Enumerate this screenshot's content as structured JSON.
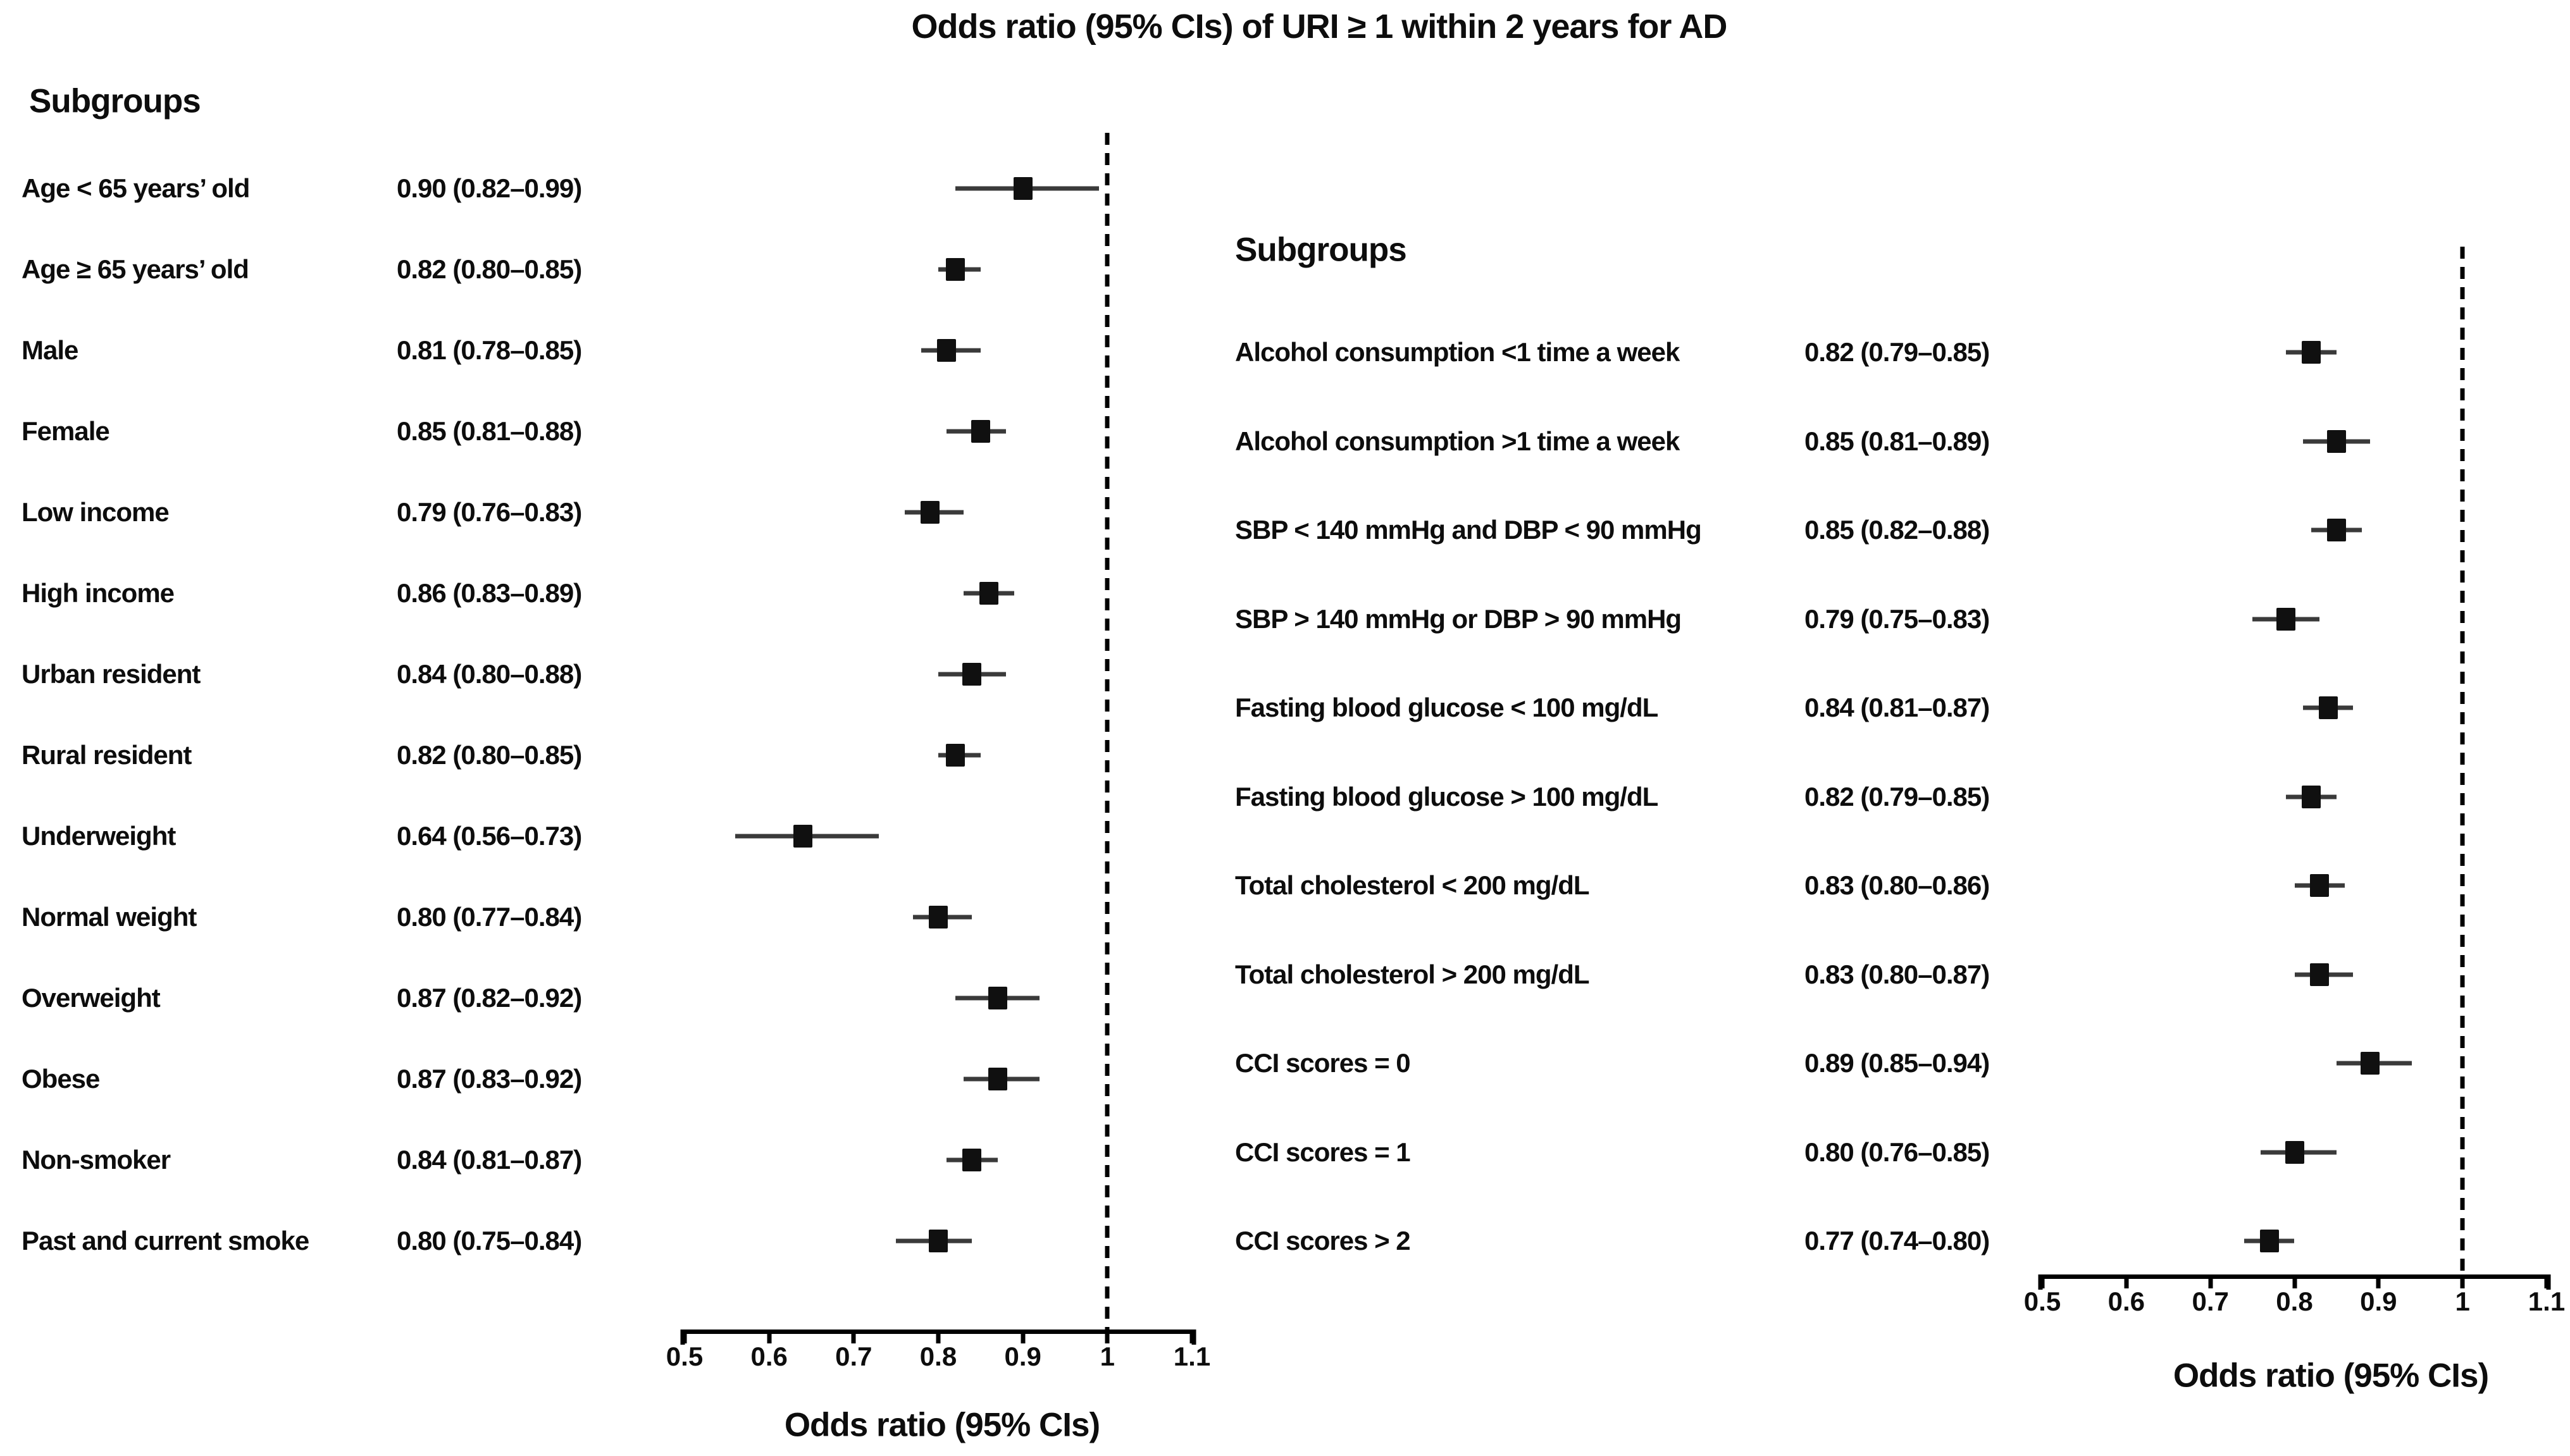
{
  "title": "Odds ratio (95% CIs) of URI ≥ 1 within 2 years for AD",
  "chart_data": [
    {
      "type": "forest",
      "panel": "left",
      "header": "Subgroups",
      "xlabel": "Odds ratio (95% CIs)",
      "xlim": [
        0.5,
        1.1
      ],
      "xticks": [
        "0.5",
        "0.6",
        "0.7",
        "0.8",
        "0.9",
        "1",
        "1.1"
      ],
      "reference_line": 1,
      "grid": false,
      "rows": [
        {
          "label": "Age < 65 years’ old",
          "or": 0.9,
          "lo": 0.82,
          "hi": 0.99,
          "display": "0.90 (0.82–0.99)"
        },
        {
          "label": "Age ≥ 65 years’ old",
          "or": 0.82,
          "lo": 0.8,
          "hi": 0.85,
          "display": "0.82 (0.80–0.85)"
        },
        {
          "label": "Male",
          "or": 0.81,
          "lo": 0.78,
          "hi": 0.85,
          "display": "0.81 (0.78–0.85)"
        },
        {
          "label": "Female",
          "or": 0.85,
          "lo": 0.81,
          "hi": 0.88,
          "display": "0.85 (0.81–0.88)"
        },
        {
          "label": "Low income",
          "or": 0.79,
          "lo": 0.76,
          "hi": 0.83,
          "display": "0.79 (0.76–0.83)"
        },
        {
          "label": "High income",
          "or": 0.86,
          "lo": 0.83,
          "hi": 0.89,
          "display": "0.86 (0.83–0.89)"
        },
        {
          "label": "Urban resident",
          "or": 0.84,
          "lo": 0.8,
          "hi": 0.88,
          "display": "0.84 (0.80–0.88)"
        },
        {
          "label": "Rural resident",
          "or": 0.82,
          "lo": 0.8,
          "hi": 0.85,
          "display": "0.82 (0.80–0.85)"
        },
        {
          "label": "Underweight",
          "or": 0.64,
          "lo": 0.56,
          "hi": 0.73,
          "display": "0.64 (0.56–0.73)"
        },
        {
          "label": "Normal weight",
          "or": 0.8,
          "lo": 0.77,
          "hi": 0.84,
          "display": "0.80 (0.77–0.84)"
        },
        {
          "label": "Overweight",
          "or": 0.87,
          "lo": 0.82,
          "hi": 0.92,
          "display": "0.87 (0.82–0.92)"
        },
        {
          "label": "Obese",
          "or": 0.87,
          "lo": 0.83,
          "hi": 0.92,
          "display": "0.87 (0.83–0.92)"
        },
        {
          "label": "Non-smoker",
          "or": 0.84,
          "lo": 0.81,
          "hi": 0.87,
          "display": "0.84 (0.81–0.87)"
        },
        {
          "label": "Past and current smoke",
          "or": 0.8,
          "lo": 0.75,
          "hi": 0.84,
          "display": "0.80 (0.75–0.84)"
        }
      ]
    },
    {
      "type": "forest",
      "panel": "right",
      "header": "Subgroups",
      "xlabel": "Odds ratio (95% CIs)",
      "xlim": [
        0.5,
        1.1
      ],
      "xticks": [
        "0.5",
        "0.6",
        "0.7",
        "0.8",
        "0.9",
        "1",
        "1.1"
      ],
      "reference_line": 1,
      "grid": false,
      "rows": [
        {
          "label": "Alcohol consumption <1 time a week",
          "or": 0.82,
          "lo": 0.79,
          "hi": 0.85,
          "display": "0.82 (0.79–0.85)"
        },
        {
          "label": "Alcohol consumption >1 time a week",
          "or": 0.85,
          "lo": 0.81,
          "hi": 0.89,
          "display": "0.85 (0.81–0.89)"
        },
        {
          "label": "SBP < 140 mmHg and DBP < 90 mmHg",
          "or": 0.85,
          "lo": 0.82,
          "hi": 0.88,
          "display": "0.85 (0.82–0.88)"
        },
        {
          "label": "SBP > 140 mmHg or DBP > 90 mmHg",
          "or": 0.79,
          "lo": 0.75,
          "hi": 0.83,
          "display": "0.79 (0.75–0.83)"
        },
        {
          "label": "Fasting blood glucose < 100 mg/dL",
          "or": 0.84,
          "lo": 0.81,
          "hi": 0.87,
          "display": "0.84 (0.81–0.87)"
        },
        {
          "label": "Fasting blood glucose > 100 mg/dL",
          "or": 0.82,
          "lo": 0.79,
          "hi": 0.85,
          "display": "0.82 (0.79–0.85)"
        },
        {
          "label": "Total cholesterol < 200 mg/dL",
          "or": 0.83,
          "lo": 0.8,
          "hi": 0.86,
          "display": "0.83 (0.80–0.86)"
        },
        {
          "label": "Total cholesterol > 200 mg/dL",
          "or": 0.83,
          "lo": 0.8,
          "hi": 0.87,
          "display": "0.83 (0.80–0.87)"
        },
        {
          "label": "CCI scores = 0",
          "or": 0.89,
          "lo": 0.85,
          "hi": 0.94,
          "display": "0.89 (0.85–0.94)"
        },
        {
          "label": "CCI scores = 1",
          "or": 0.8,
          "lo": 0.76,
          "hi": 0.85,
          "display": "0.80 (0.76–0.85)"
        },
        {
          "label": "CCI scores > 2",
          "or": 0.77,
          "lo": 0.74,
          "hi": 0.8,
          "display": "0.77 (0.74–0.80)"
        }
      ]
    }
  ]
}
